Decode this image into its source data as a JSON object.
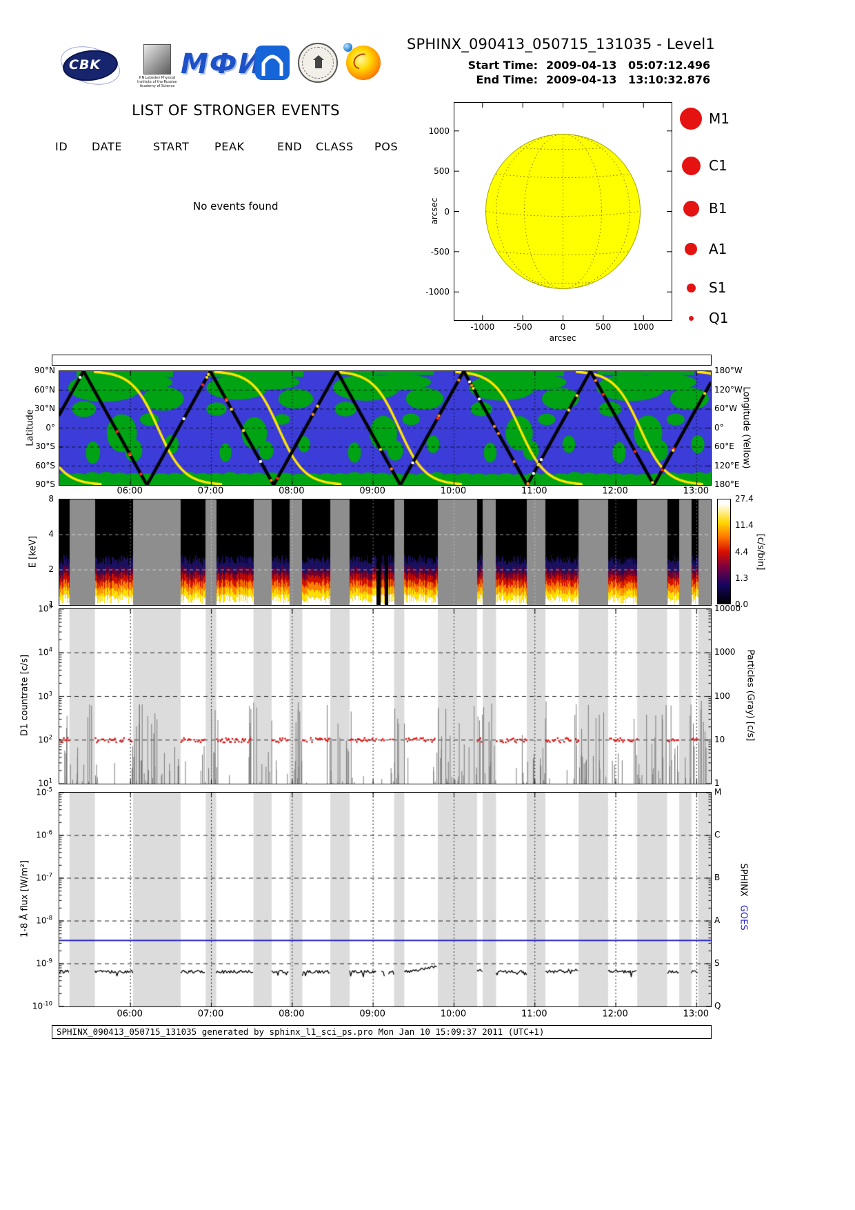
{
  "header": {
    "title": "SPHINX_090413_050715_131035 - Level1",
    "start_label": "Start Time:",
    "start_value": "2009-04-13   05:07:12.496",
    "end_label": "End Time:",
    "end_value": "2009-04-13   13:10:32.876",
    "logos": {
      "cbk_text": "CBK",
      "lebedev_caption": "P.N.Lebedev Physical Institute of the Russian Academy of Science",
      "mephi_text": "МФИ"
    }
  },
  "events": {
    "heading": "LIST OF STRONGER EVENTS",
    "columns": [
      "ID",
      "DATE",
      "START",
      "PEAK",
      "END",
      "CLASS",
      "POS"
    ],
    "empty_message": "No events found"
  },
  "sun_plot": {
    "axis_unit": "arcsec",
    "x_ticks": [
      "-1000",
      "-500",
      "0",
      "500",
      "1000"
    ],
    "y_ticks": [
      "1000",
      "500",
      "0",
      "-500",
      "-1000"
    ],
    "disk_color": "#ffff00",
    "marker_color": "#e51212",
    "legend": [
      {
        "label": "M1",
        "r": 16
      },
      {
        "label": "C1",
        "r": 13.5
      },
      {
        "label": "B1",
        "r": 11.5
      },
      {
        "label": "A1",
        "r": 9
      },
      {
        "label": "S1",
        "r": 6.5
      },
      {
        "label": "Q1",
        "r": 3.5
      }
    ]
  },
  "time_axis": {
    "start_hour": 5.12,
    "end_hour": 13.176,
    "tick_hours": [
      6,
      7,
      8,
      9,
      10,
      11,
      12,
      13
    ],
    "tick_labels": [
      "06:00",
      "07:00",
      "08:00",
      "09:00",
      "10:00",
      "11:00",
      "12:00",
      "13:00"
    ]
  },
  "map_panel": {
    "y_label": "Latitude",
    "right_label": "Longitude (Yellow)",
    "lat_ticks": [
      "90°N",
      "60°N",
      "30°N",
      "0°",
      "30°S",
      "60°S",
      "90°S"
    ],
    "lon_ticks": [
      "180°W",
      "120°W",
      "60°W",
      "0°",
      "60°E",
      "120°E",
      "180°E"
    ],
    "sea_color": "#3c3cd8",
    "land_color": "#00a314",
    "track_color": "#000000",
    "longitude_color": "#ffe400"
  },
  "spectrogram": {
    "y_label": "E [keV]",
    "y_ticks": [
      "8",
      "4",
      "2",
      "1"
    ],
    "colorbar_label": "[c/s/bin]",
    "colorbar_ticks": [
      "27.4",
      "11.4",
      "4.4",
      "1.3",
      "0.0"
    ]
  },
  "d1_panel": {
    "y_label": "D1 countrate [c/s]",
    "left_ticks": [
      {
        "b": "10",
        "e": "5"
      },
      {
        "b": "10",
        "e": "4"
      },
      {
        "b": "10",
        "e": "3"
      },
      {
        "b": "10",
        "e": "2"
      },
      {
        "b": "10",
        "e": "1"
      }
    ],
    "right_label": "Particles (Gray) [c/s]",
    "right_ticks": [
      "10000",
      "1000",
      "100",
      "10",
      "1"
    ]
  },
  "flux_panel": {
    "y_label": "1-8 Å flux [W/m²]",
    "left_ticks": [
      {
        "b": "10",
        "e": "-5"
      },
      {
        "b": "10",
        "e": "-6"
      },
      {
        "b": "10",
        "e": "-7"
      },
      {
        "b": "10",
        "e": "-8"
      },
      {
        "b": "10",
        "e": "-9"
      },
      {
        "b": "10",
        "e": "-10"
      }
    ],
    "class_ticks": [
      "M",
      "C",
      "B",
      "A",
      "S",
      "Q"
    ],
    "legend_sphinx": "SPHINX",
    "legend_goes": "GOES",
    "goes_color": "#2222cc"
  },
  "footer": {
    "text": "SPHINX_090413_050715_131035 generated by sphinx_l1_sci_ps.pro Mon Jan 10 15:09:37 2011 (UTC+1)"
  },
  "chart_data": [
    {
      "id": "solar_disk_map",
      "type": "scatter",
      "x_label": "arcsec",
      "y_label": "arcsec",
      "x_range": [
        -1354,
        1354
      ],
      "y_range": [
        -1354,
        1354
      ],
      "sun_radius_arcsec": 960,
      "flares": [],
      "legend_classes": [
        "M1",
        "C1",
        "B1",
        "A1",
        "S1",
        "Q1"
      ]
    },
    {
      "id": "orbit_ground_track",
      "type": "line",
      "x_range_hours": [
        5.12,
        13.176
      ],
      "latitude": {
        "waveform": "triangle",
        "period_hours": 1.5667,
        "first_peak_hour": 5.42,
        "max_deg": 90,
        "min_deg": -90
      },
      "longitude": {
        "waveform": "descending_wrap",
        "cycle_centers_hours": [
          4.85,
          6.34,
          7.83,
          9.32,
          10.81,
          12.3,
          13.79
        ],
        "sigmoid_scale_hours": 0.16,
        "top": "180°W",
        "bottom": "180°E"
      }
    },
    {
      "id": "d1_spectrogram",
      "type": "heatmap",
      "y_unit": "keV",
      "y_range": [
        1,
        8
      ],
      "y_scale": "log",
      "value_unit": "c/s/bin",
      "value_ticks": [
        0.0,
        1.3,
        4.4,
        11.4,
        27.4
      ],
      "signal_band_kev": [
        1.0,
        2.4
      ],
      "gap_intervals_hours": [
        [
          5.245,
          5.56
        ],
        [
          6.03,
          6.62
        ],
        [
          6.93,
          7.06
        ],
        [
          7.52,
          7.745
        ],
        [
          7.965,
          8.125
        ],
        [
          8.47,
          8.71
        ],
        [
          9.26,
          9.385
        ],
        [
          9.8,
          10.285
        ],
        [
          10.355,
          10.52
        ],
        [
          10.9,
          11.13
        ],
        [
          11.54,
          11.905
        ],
        [
          12.265,
          12.635
        ],
        [
          12.785,
          12.935
        ],
        [
          13.02,
          13.176
        ]
      ],
      "dropout_intervals_hours": [
        [
          9.04,
          9.095
        ],
        [
          9.14,
          9.19
        ]
      ]
    },
    {
      "id": "d1_countrate",
      "type": "scatter",
      "y_scale": "log",
      "y_range": [
        10,
        100000
      ],
      "y_unit": "c/s",
      "sphinx_countrate_level": 100,
      "particles_axis_range": [
        1,
        10000
      ],
      "particle_spike_range": [
        10,
        600
      ]
    },
    {
      "id": "xray_flux",
      "type": "line",
      "y_scale": "log",
      "y_range": [
        1e-10,
        1e-05
      ],
      "y_unit": "W/m²",
      "sphinx_flux_base": 6.5e-10,
      "sphinx_flux_peak": 9.5e-10,
      "sphinx_peak_hour": 9.95,
      "secondary_bump_hour": 11.65,
      "goes_flux_level": 3.5e-09,
      "goes_class_levels": {
        "M": 1e-05,
        "C": 1e-06,
        "B": 1e-07,
        "A": 1e-08,
        "S": 1e-09,
        "Q": 1e-10
      }
    }
  ]
}
